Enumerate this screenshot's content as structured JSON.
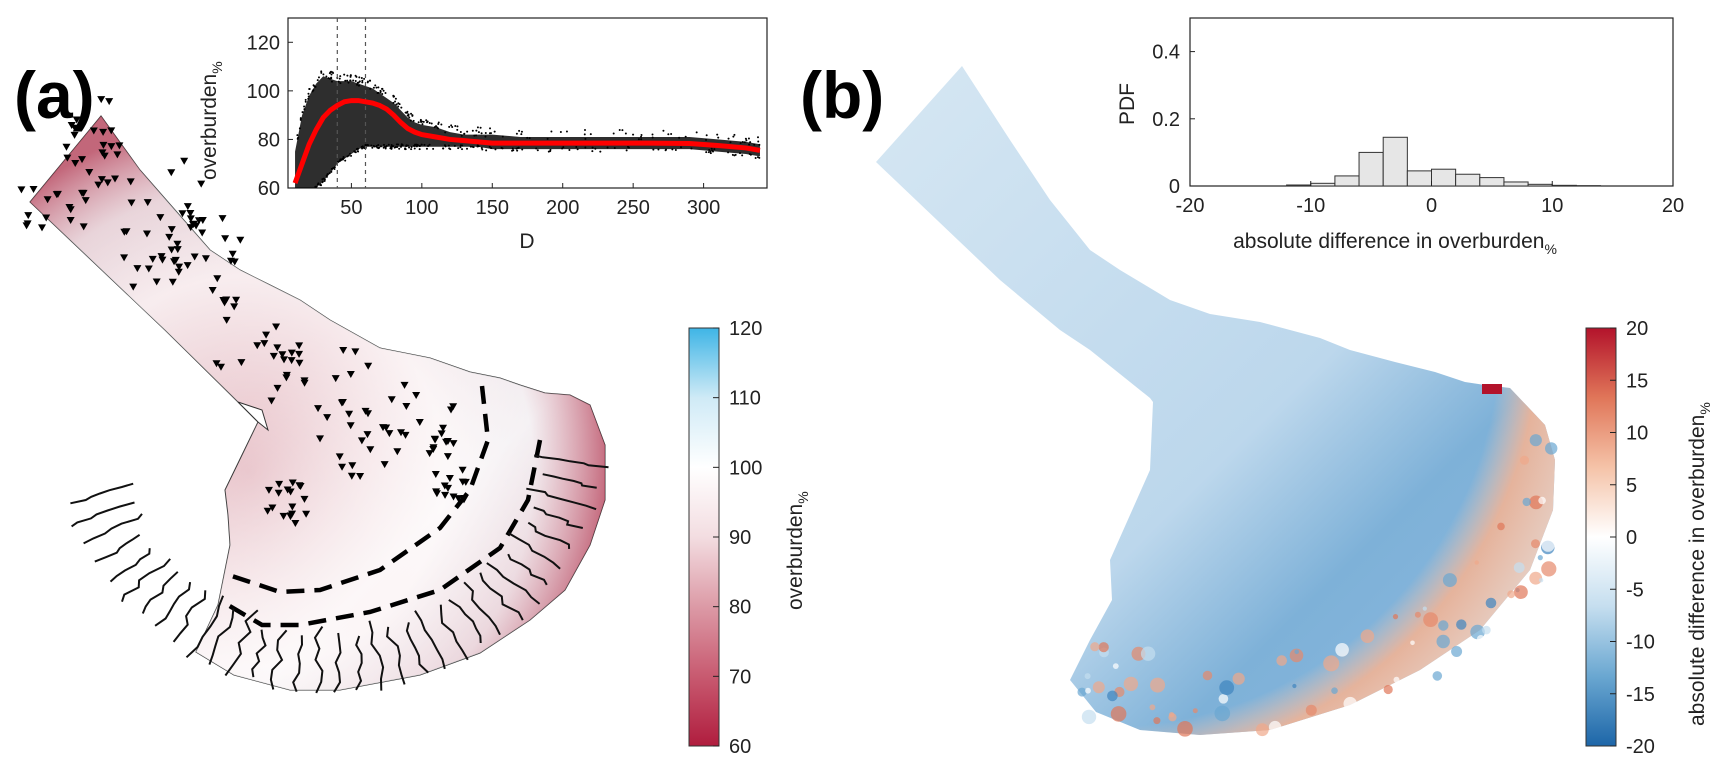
{
  "panels": {
    "a": {
      "label": "(a)"
    },
    "b": {
      "label": "(b)"
    }
  },
  "chart_data": [
    {
      "id": "a_inset",
      "type": "scatter",
      "xlabel": "D",
      "ylabel": "overburden",
      "ylabel_sub": "%",
      "xlim": [
        5,
        345
      ],
      "ylim": [
        60,
        130
      ],
      "xticks": [
        50,
        100,
        150,
        200,
        250,
        300
      ],
      "yticks": [
        60,
        80,
        100,
        120
      ],
      "vlines": [
        40,
        60
      ],
      "grid": false,
      "scatter_color": "#000000",
      "line_color": "#ff0000",
      "mean_curve": {
        "x": [
          10,
          15,
          20,
          25,
          30,
          35,
          40,
          45,
          50,
          55,
          60,
          65,
          70,
          75,
          80,
          85,
          90,
          95,
          100,
          110,
          120,
          130,
          140,
          150,
          170,
          200,
          230,
          260,
          290,
          310,
          330,
          340
        ],
        "y": [
          62,
          70,
          78,
          84,
          89,
          92,
          94,
          95.5,
          96,
          96,
          95.5,
          95,
          94,
          92.5,
          90,
          87,
          84.5,
          83,
          82,
          81,
          80,
          79.5,
          79,
          78.5,
          78.5,
          78.5,
          78.5,
          78.5,
          78.3,
          77.5,
          76.5,
          75.5
        ]
      },
      "spread_upper": [
        75,
        90,
        98,
        103,
        106,
        105,
        104,
        104,
        104,
        103,
        102,
        101,
        99,
        97,
        95,
        92,
        89,
        87,
        86,
        85,
        83,
        82,
        82,
        82,
        81,
        81,
        81,
        81,
        81,
        80,
        79,
        78
      ],
      "spread_lower": [
        58,
        58,
        58,
        60,
        63,
        66,
        70,
        72,
        74,
        76,
        77,
        77,
        77,
        77,
        77,
        77,
        77,
        77,
        77,
        77,
        77,
        77,
        77,
        76,
        76,
        76,
        76,
        76,
        76,
        75,
        74,
        73
      ]
    },
    {
      "id": "a_colorbar",
      "type": "heatmap",
      "label": "overburden",
      "label_sub": "%",
      "range": [
        60,
        120
      ],
      "ticks": [
        60,
        70,
        80,
        90,
        100,
        110,
        120
      ],
      "colors": [
        "#b01d3e",
        "#c85a70",
        "#dc9aa6",
        "#f3dde1",
        "#ffffff",
        "#cfeaf6",
        "#3fb5e6"
      ]
    },
    {
      "id": "b_histogram",
      "type": "bar",
      "xlabel": "absolute difference in overburden",
      "xlabel_sub": "%",
      "ylabel": "PDF",
      "xlim": [
        -20,
        20
      ],
      "ylim": [
        0,
        0.5
      ],
      "xticks": [
        -20,
        -10,
        0,
        10,
        20
      ],
      "yticks": [
        0,
        0.2,
        0.4
      ],
      "bin_width": 2,
      "bin_edges_start": -12,
      "values": [
        0.003,
        0.008,
        0.03,
        0.1,
        0.145,
        0.045,
        0.05,
        0.035,
        0.025,
        0.012,
        0.005,
        0.002,
        0.001
      ],
      "bar_color": "#e6e6e6"
    },
    {
      "id": "b_colorbar",
      "type": "heatmap",
      "label": "absolute difference in overburden",
      "label_sub": "%",
      "range": [
        -20,
        20
      ],
      "ticks": [
        -20,
        -15,
        -10,
        -5,
        0,
        5,
        10,
        15,
        20
      ],
      "colors": [
        "#1d66a8",
        "#6aa7d1",
        "#c5deef",
        "#ffffff",
        "#f5c3a8",
        "#e07659",
        "#b3132b"
      ]
    }
  ]
}
